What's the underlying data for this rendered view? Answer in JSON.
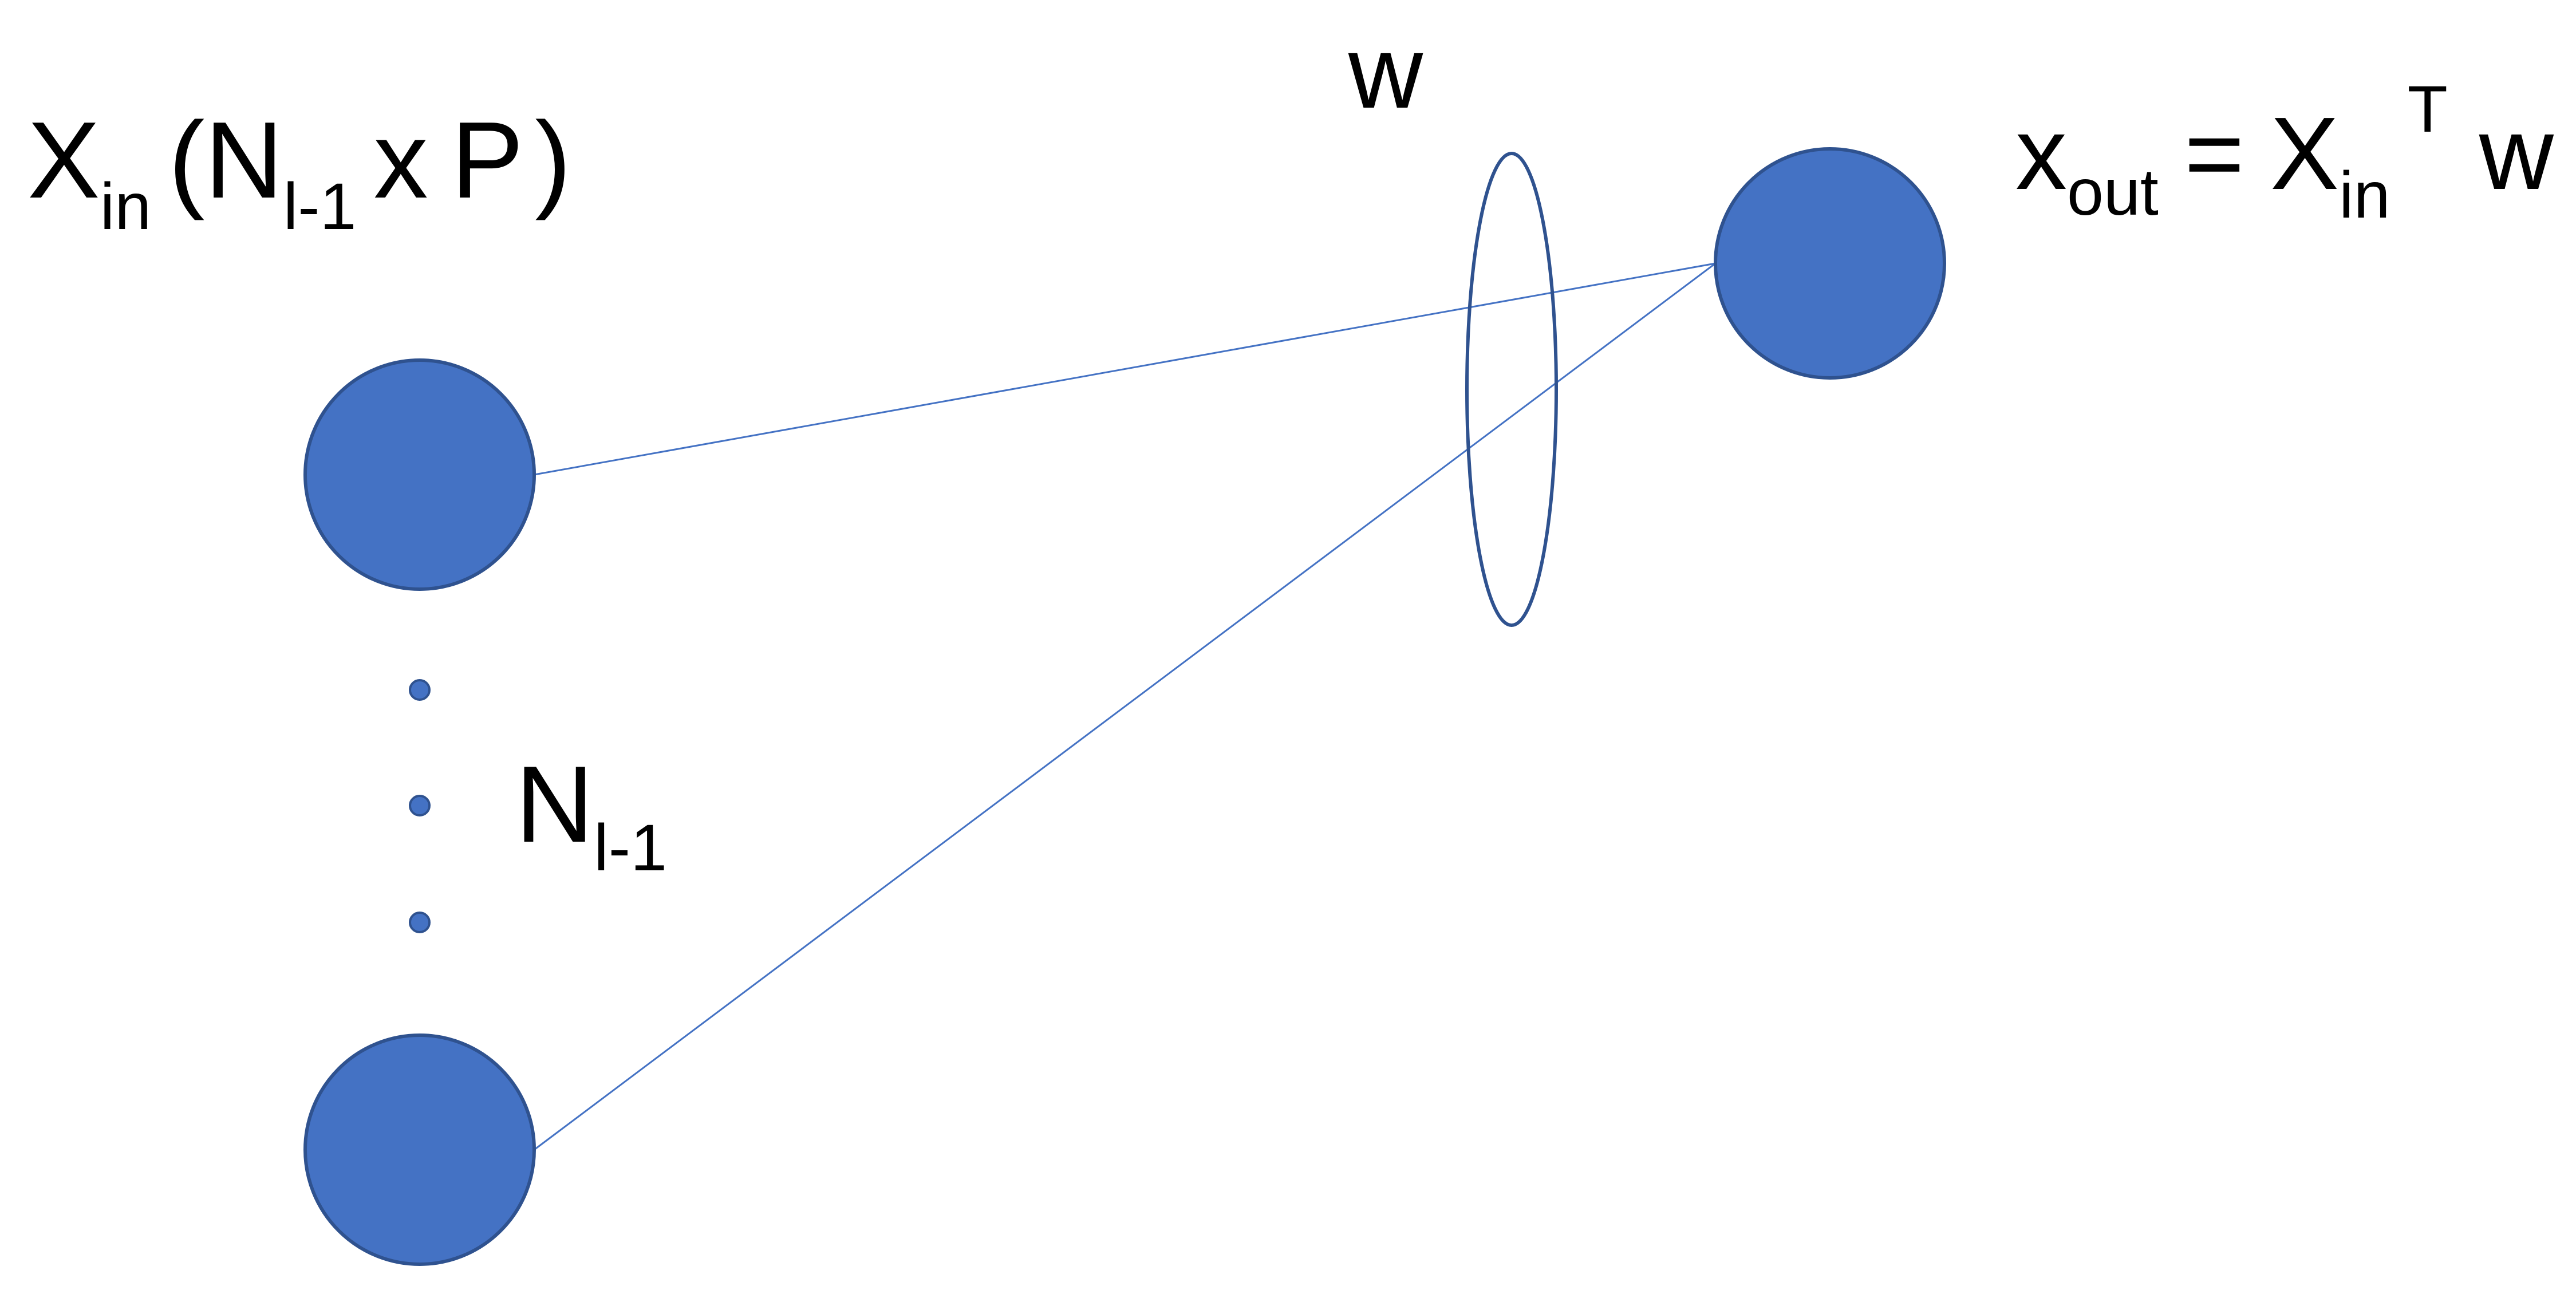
{
  "colors": {
    "node_fill": "#4472C4",
    "node_stroke": "#2F528F",
    "edge_stroke": "#4472C4",
    "ellipse_stroke": "#2F528F",
    "text": "#000000"
  },
  "labels": {
    "input": {
      "base": "X",
      "base_sub": "in",
      "open_paren": "(",
      "n": "N",
      "n_sub": "l-1",
      "times": "x",
      "p": "P",
      "close_paren": ")"
    },
    "weight": "w",
    "output": {
      "base": "x",
      "base_sub": "out",
      "equals": "=",
      "rhs_base": "X",
      "rhs_sub": "in",
      "rhs_sup": "T",
      "rhs_w": "w"
    },
    "count": {
      "n": "N",
      "n_sub": "l-1"
    }
  }
}
